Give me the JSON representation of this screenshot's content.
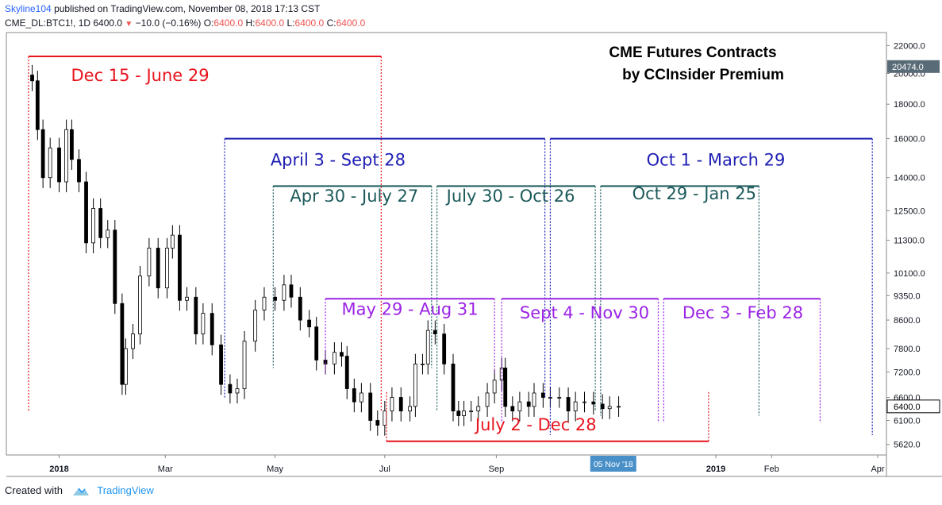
{
  "header": {
    "author": "Skyline104",
    "published_text": "published on TradingView.com, November 08, 2018 17:13 CST",
    "symbol": "CME_DL:BTC1!, 1D",
    "last": "6400.0",
    "change": "−10.0 (−0.16%)",
    "open_label": "O:",
    "open": "6400.0",
    "high_label": "H:",
    "high": "6400.0",
    "low_label": "L:",
    "low": "6400.0",
    "close_label": "C:",
    "close": "6400.0"
  },
  "footer": {
    "created_with": "Created with",
    "brand": "TradingView"
  },
  "chart_data": {
    "type": "candlestick",
    "title": "CME Futures Contracts",
    "subtitle": "by CCInsider Premium",
    "y_scale": "log",
    "ylim": [
      5420,
      23000
    ],
    "y_ticks": [
      22000,
      20000,
      18000,
      16000,
      14000,
      12500,
      11300,
      10100,
      9350,
      8600,
      7800,
      7200,
      6600,
      6100,
      5620
    ],
    "current_price_label": "20474.0",
    "last_price_label": "6400.0",
    "x_ticks": [
      {
        "date": "2018-01-01",
        "label": "2018",
        "bold": true
      },
      {
        "date": "2018-03-01",
        "label": "Mar"
      },
      {
        "date": "2018-05-01",
        "label": "May"
      },
      {
        "date": "2018-07-01",
        "label": "Jul"
      },
      {
        "date": "2018-09-01",
        "label": "Sep"
      },
      {
        "date": "2019-01-01",
        "label": "2019",
        "bold": true
      },
      {
        "date": "2019-02-01",
        "label": "Feb"
      },
      {
        "date": "2019-04-01",
        "label": "Apr"
      }
    ],
    "crosshair_label": "05 Nov '18",
    "series_closes": [
      {
        "date": "2017-12-17",
        "close": 19500
      },
      {
        "date": "2017-12-20",
        "close": 16500
      },
      {
        "date": "2017-12-23",
        "close": 14000
      },
      {
        "date": "2017-12-27",
        "close": 15500
      },
      {
        "date": "2018-01-01",
        "close": 13800
      },
      {
        "date": "2018-01-05",
        "close": 16500
      },
      {
        "date": "2018-01-08",
        "close": 14900
      },
      {
        "date": "2018-01-12",
        "close": 13800
      },
      {
        "date": "2018-01-16",
        "close": 11200
      },
      {
        "date": "2018-01-20",
        "close": 12600
      },
      {
        "date": "2018-01-24",
        "close": 11400
      },
      {
        "date": "2018-01-28",
        "close": 11700
      },
      {
        "date": "2018-02-01",
        "close": 9100
      },
      {
        "date": "2018-02-05",
        "close": 6900
      },
      {
        "date": "2018-02-07",
        "close": 7800
      },
      {
        "date": "2018-02-11",
        "close": 8200
      },
      {
        "date": "2018-02-15",
        "close": 10000
      },
      {
        "date": "2018-02-20",
        "close": 11000
      },
      {
        "date": "2018-02-25",
        "close": 9600
      },
      {
        "date": "2018-03-02",
        "close": 11000
      },
      {
        "date": "2018-03-05",
        "close": 11500
      },
      {
        "date": "2018-03-09",
        "close": 9200
      },
      {
        "date": "2018-03-13",
        "close": 9300
      },
      {
        "date": "2018-03-18",
        "close": 8200
      },
      {
        "date": "2018-03-22",
        "close": 8800
      },
      {
        "date": "2018-03-27",
        "close": 7900
      },
      {
        "date": "2018-04-01",
        "close": 6900
      },
      {
        "date": "2018-04-06",
        "close": 6700
      },
      {
        "date": "2018-04-10",
        "close": 6800
      },
      {
        "date": "2018-04-14",
        "close": 8000
      },
      {
        "date": "2018-04-20",
        "close": 8900
      },
      {
        "date": "2018-04-25",
        "close": 9300
      },
      {
        "date": "2018-05-01",
        "close": 9200
      },
      {
        "date": "2018-05-06",
        "close": 9700
      },
      {
        "date": "2018-05-10",
        "close": 9300
      },
      {
        "date": "2018-05-15",
        "close": 8600
      },
      {
        "date": "2018-05-20",
        "close": 8400
      },
      {
        "date": "2018-05-24",
        "close": 7500
      },
      {
        "date": "2018-05-29",
        "close": 7400
      },
      {
        "date": "2018-06-03",
        "close": 7700
      },
      {
        "date": "2018-06-07",
        "close": 7600
      },
      {
        "date": "2018-06-10",
        "close": 6800
      },
      {
        "date": "2018-06-14",
        "close": 6500
      },
      {
        "date": "2018-06-18",
        "close": 6700
      },
      {
        "date": "2018-06-23",
        "close": 6100
      },
      {
        "date": "2018-06-27",
        "close": 6000
      },
      {
        "date": "2018-07-01",
        "close": 6300
      },
      {
        "date": "2018-07-05",
        "close": 6600
      },
      {
        "date": "2018-07-10",
        "close": 6300
      },
      {
        "date": "2018-07-15",
        "close": 6400
      },
      {
        "date": "2018-07-18",
        "close": 7400
      },
      {
        "date": "2018-07-22",
        "close": 7400
      },
      {
        "date": "2018-07-25",
        "close": 8300
      },
      {
        "date": "2018-07-29",
        "close": 8200
      },
      {
        "date": "2018-08-03",
        "close": 7400
      },
      {
        "date": "2018-08-08",
        "close": 6300
      },
      {
        "date": "2018-08-11",
        "close": 6200
      },
      {
        "date": "2018-08-14",
        "close": 6300
      },
      {
        "date": "2018-08-18",
        "close": 6300
      },
      {
        "date": "2018-08-22",
        "close": 6400
      },
      {
        "date": "2018-08-27",
        "close": 6700
      },
      {
        "date": "2018-08-31",
        "close": 7000
      },
      {
        "date": "2018-09-04",
        "close": 7300
      },
      {
        "date": "2018-09-06",
        "close": 6400
      },
      {
        "date": "2018-09-10",
        "close": 6300
      },
      {
        "date": "2018-09-14",
        "close": 6500
      },
      {
        "date": "2018-09-19",
        "close": 6400
      },
      {
        "date": "2018-09-22",
        "close": 6700
      },
      {
        "date": "2018-09-27",
        "close": 6600
      },
      {
        "date": "2018-10-01",
        "close": 6600
      },
      {
        "date": "2018-10-06",
        "close": 6600
      },
      {
        "date": "2018-10-11",
        "close": 6300
      },
      {
        "date": "2018-10-15",
        "close": 6500
      },
      {
        "date": "2018-10-20",
        "close": 6500
      },
      {
        "date": "2018-10-25",
        "close": 6450
      },
      {
        "date": "2018-10-30",
        "close": 6350
      },
      {
        "date": "2018-11-03",
        "close": 6400
      },
      {
        "date": "2018-11-08",
        "close": 6400
      }
    ],
    "annotations": [
      {
        "label": "Dec 15 - June 29",
        "color": "#e8141e",
        "line": "top",
        "level": 21200,
        "start": "2017-12-15",
        "end": "2018-06-29",
        "dash_to": 6300,
        "text_at": {
          "date": "2018-02-15",
          "price": 19500
        }
      },
      {
        "label": "April 3 - Sept 28",
        "color": "#1e1eb4",
        "line": "top",
        "level": 16000,
        "start": "2018-04-03",
        "end": "2018-09-28",
        "dash_to": 6600,
        "text_at": {
          "date": "2018-06-05",
          "price": 14600
        }
      },
      {
        "label": "Oct 1 - March 29",
        "color": "#1e1eb4",
        "line": "top",
        "level": 16000,
        "start": "2018-10-01",
        "end": "2019-03-29",
        "dash_to": 5800,
        "text_at": {
          "date": "2019-01-01",
          "price": 14600
        }
      },
      {
        "label": "Apr 30 - July 27",
        "color": "#1d5a5a",
        "line": "top",
        "level": 13600,
        "start": "2018-04-30",
        "end": "2018-07-27",
        "dash_to": 7300,
        "text_at": {
          "date": "2018-06-14",
          "price": 12900
        }
      },
      {
        "label": "July 30 - Oct 26",
        "color": "#1d5a5a",
        "line": "top",
        "level": 13600,
        "start": "2018-07-30",
        "end": "2018-10-26",
        "dash_to": 6300,
        "text_at": {
          "date": "2018-09-09",
          "price": 12900
        }
      },
      {
        "label": "Oct 29 - Jan 25",
        "color": "#1d5a5a",
        "line": "top",
        "level": 13600,
        "start": "2018-10-29",
        "end": "2019-01-25",
        "dash_to": 6200,
        "text_at": {
          "date": "2018-12-20",
          "price": 13000
        }
      },
      {
        "label": "May 29 - Aug 31",
        "color": "#9b23e6",
        "line": "top",
        "level": 9250,
        "start": "2018-05-29",
        "end": "2018-08-31",
        "dash_to": 7150,
        "text_at": {
          "date": "2018-07-15",
          "price": 8750
        }
      },
      {
        "label": "Sept 4 - Nov 30",
        "color": "#9b23e6",
        "line": "top",
        "level": 9250,
        "start": "2018-09-04",
        "end": "2018-11-30",
        "dash_to": 6050,
        "text_at": {
          "date": "2018-10-20",
          "price": 8650
        }
      },
      {
        "label": "Dec 3 - Feb 28",
        "color": "#9b23e6",
        "line": "top",
        "level": 9250,
        "start": "2018-12-03",
        "end": "2019-02-28",
        "dash_to": 6050,
        "text_at": {
          "date": "2019-01-16",
          "price": 8650
        }
      },
      {
        "label": "July 2 - Dec 28",
        "color": "#e8141e",
        "line": "bottom",
        "level": 5680,
        "start": "2018-07-02",
        "end": "2018-12-28",
        "dash_to": 6750,
        "text_at": {
          "date": "2018-09-23",
          "price": 5900
        }
      }
    ],
    "grid": false,
    "colors": {
      "axis": "#555555",
      "text": "#131722",
      "up_candle": "#ffffff",
      "down_candle": "#000000",
      "price_label_bg": "#5a6b78",
      "crosshair_bg": "#4a90c8",
      "brand": "#2196f3"
    }
  }
}
